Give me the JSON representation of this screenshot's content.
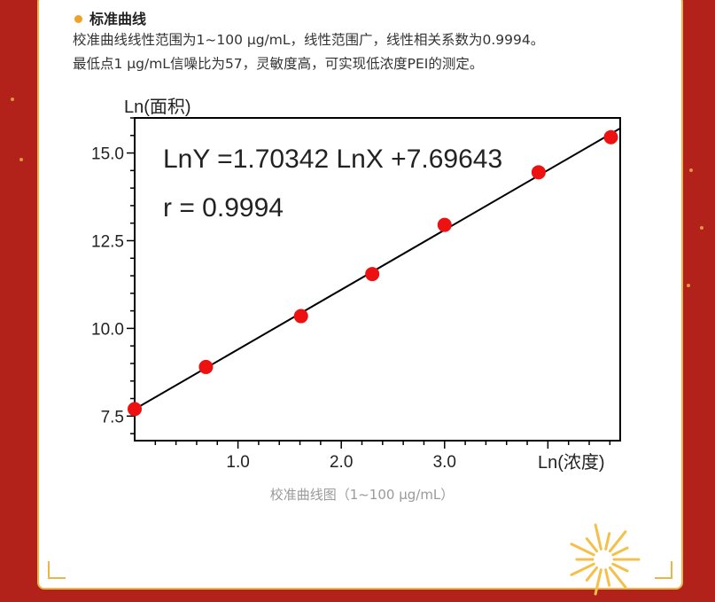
{
  "section": {
    "title": "标准曲线",
    "line1": "校准曲线线性范围为1~100 μg/mL，线性范围广，线性相关系数为0.9994。",
    "line2": "最低点1 μg/mL信噪比为57，灵敏度高，可实现低浓度PEI的测定。"
  },
  "caption": "校准曲线图（1~100 μg/mL）",
  "colors": {
    "background": "#b3211b",
    "accent": "#f0a12a",
    "point": "#ee1111",
    "line": "#000000"
  },
  "chart_data": {
    "type": "scatter",
    "title": "",
    "xlabel": "Ln(浓度)",
    "ylabel": "Ln(面积)",
    "xlim": [
      0,
      4.7
    ],
    "ylim": [
      6.8,
      16.0
    ],
    "xticks": [
      1.0,
      2.0,
      3.0
    ],
    "xtick_labels": [
      "1.0",
      "2.0",
      "3.0"
    ],
    "yticks": [
      7.5,
      10.0,
      12.5,
      15.0
    ],
    "ytick_labels": [
      "7.5",
      "10.0",
      "12.5",
      "15.0"
    ],
    "equation": "LnY =1.70342 LnX +7.69643",
    "r_text": "r = 0.9994",
    "fit": {
      "slope": 1.70342,
      "intercept": 7.69643
    },
    "points": [
      {
        "x": 0.0,
        "y": 7.7
      },
      {
        "x": 0.69,
        "y": 8.9
      },
      {
        "x": 1.61,
        "y": 10.35
      },
      {
        "x": 2.3,
        "y": 11.55
      },
      {
        "x": 3.0,
        "y": 12.95
      },
      {
        "x": 3.91,
        "y": 14.45
      },
      {
        "x": 4.61,
        "y": 15.45
      }
    ],
    "grid": false
  }
}
